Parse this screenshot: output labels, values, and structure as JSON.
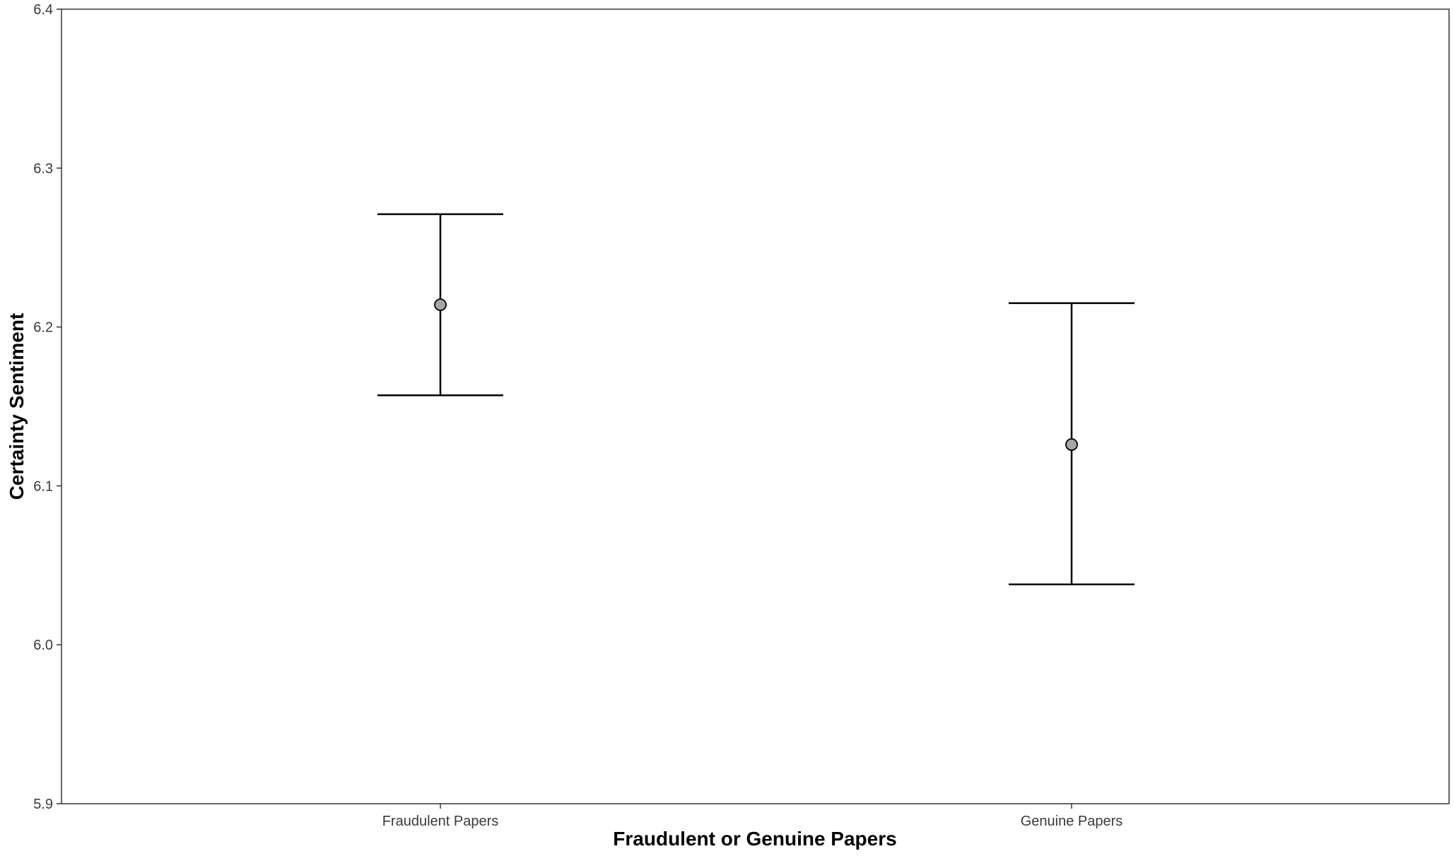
{
  "chart_data": {
    "type": "errorbar",
    "title": "",
    "xlabel": "Fraudulent or Genuine Papers",
    "ylabel": "Certainty Sentiment",
    "categories": [
      "Fraudulent Papers",
      "Genuine Papers"
    ],
    "points": [
      {
        "category": "Fraudulent Papers",
        "mean": 6.214,
        "lower": 6.157,
        "upper": 6.271
      },
      {
        "category": "Genuine Papers",
        "mean": 6.126,
        "lower": 6.038,
        "upper": 6.215
      }
    ],
    "ylim": [
      5.9,
      6.4
    ],
    "yticks": [
      "5.9",
      "6.0",
      "6.1",
      "6.2",
      "6.3",
      "6.4"
    ],
    "grid": false,
    "point_fill": "#a6a6a6",
    "line_color": "#000000"
  }
}
